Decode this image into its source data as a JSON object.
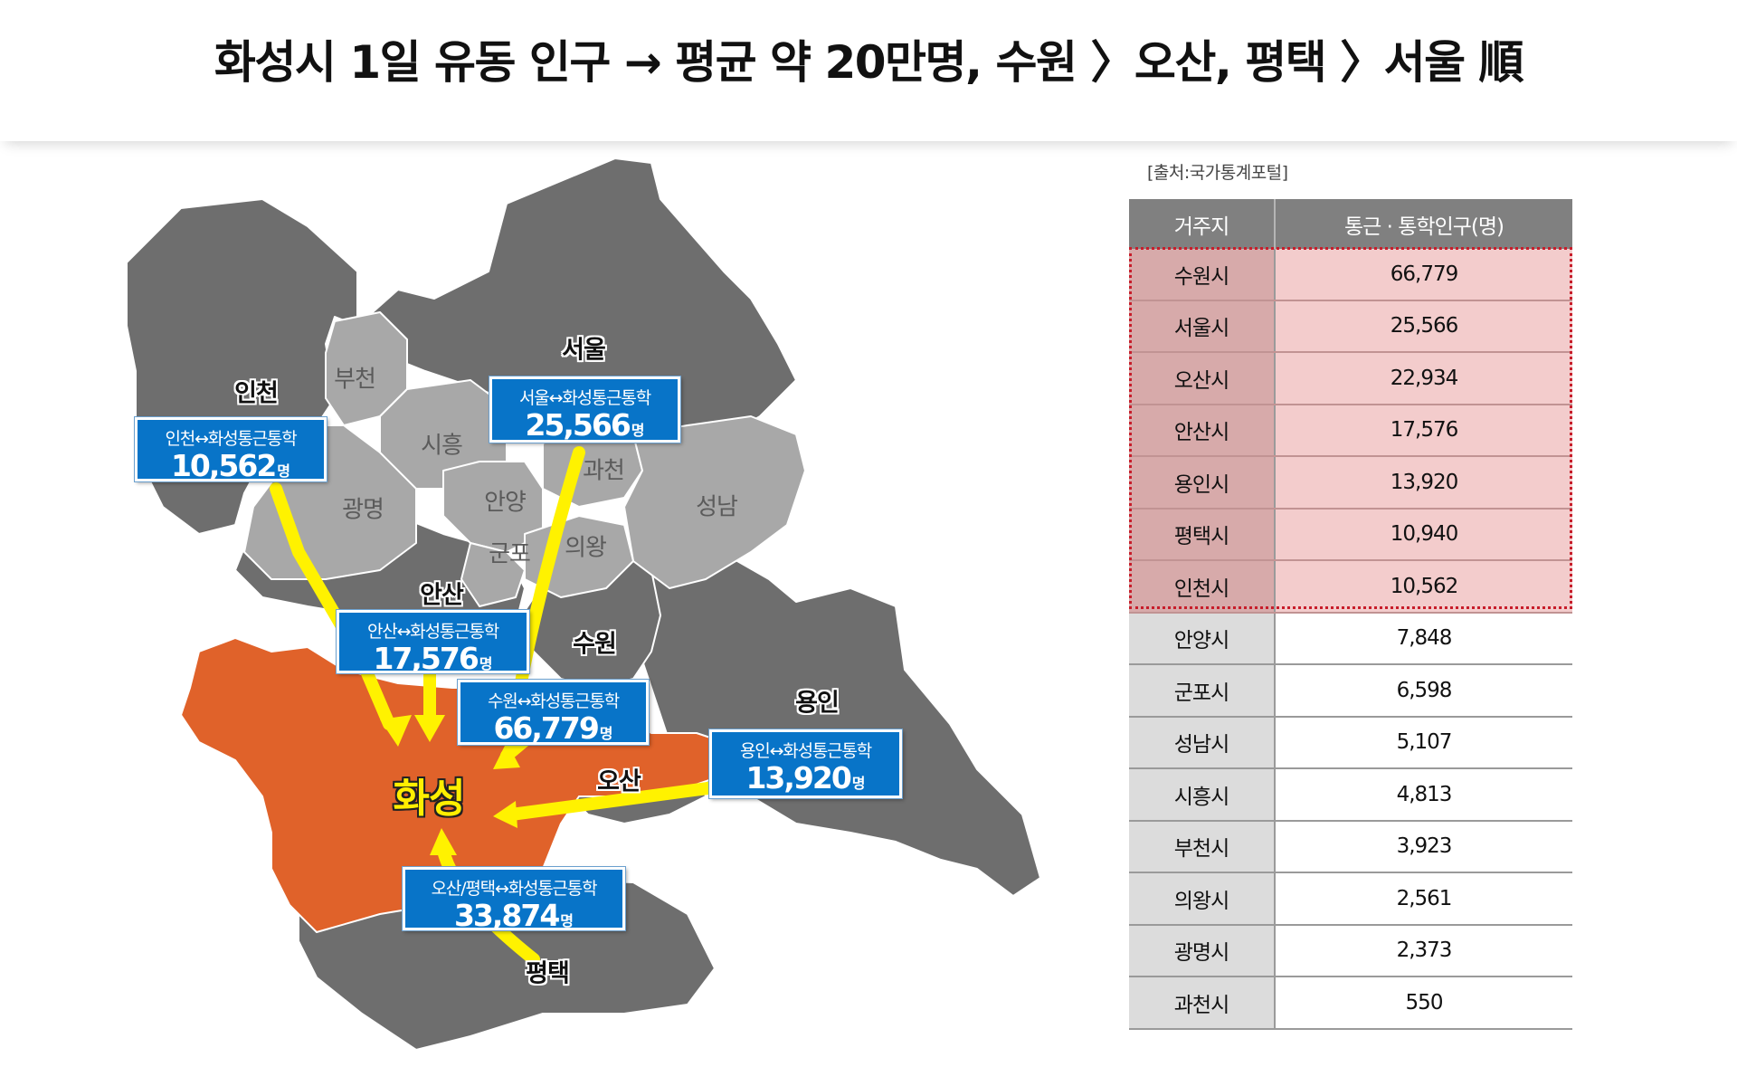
{
  "title": "화성시 1일  유동 인구 → 평균 약 20만명, 수원 〉오산, 평택 〉서울 順",
  "colors": {
    "home_region": "#e0622a",
    "dark_region": "#6e6e6e",
    "light_region": "#a8a8a8",
    "arrow": "#fff200",
    "callout": "#0874c8",
    "highlight_row": "#f3cccc",
    "highlight_border": "#c71d2a"
  },
  "map": {
    "labels": {
      "incheon": "인천",
      "seoul": "서울",
      "bucheon": "부천",
      "siheung": "시흥",
      "gwangmyeong": "광명",
      "anyang": "안양",
      "gwacheon": "과천",
      "seongnam": "성남",
      "gunpo": "군포",
      "uiwang": "의왕",
      "ansan": "안산",
      "suwon": "수원",
      "yongin": "용인",
      "osan": "오산",
      "pyeongtaek": "평택",
      "hwaseong": "화성"
    },
    "unit": "명",
    "callouts": {
      "incheon": {
        "route": "인천↔화성통근통학",
        "value": "10,562"
      },
      "seoul": {
        "route": "서울↔화성통근통학",
        "value": "25,566"
      },
      "ansan": {
        "route": "안산↔화성통근통학",
        "value": "17,576"
      },
      "suwon": {
        "route": "수원↔화성통근통학",
        "value": "66,779"
      },
      "yongin": {
        "route": "용인↔화성통근통학",
        "value": "13,920"
      },
      "osan_pyeongtaek": {
        "route": "오산/평택↔화성통근통학",
        "value": "33,874"
      }
    }
  },
  "table": {
    "source": "[출처:국가통계포털]",
    "headers": [
      "거주지",
      "통근 · 통학인구(명)"
    ],
    "rows": [
      {
        "residence": "수원시",
        "population": "66,779",
        "highlight": true
      },
      {
        "residence": "서울시",
        "population": "25,566",
        "highlight": true
      },
      {
        "residence": "오산시",
        "population": "22,934",
        "highlight": true
      },
      {
        "residence": "안산시",
        "population": "17,576",
        "highlight": true
      },
      {
        "residence": "용인시",
        "population": "13,920",
        "highlight": true
      },
      {
        "residence": "평택시",
        "population": "10,940",
        "highlight": true
      },
      {
        "residence": "인천시",
        "population": "10,562",
        "highlight": true
      },
      {
        "residence": "안양시",
        "population": "7,848",
        "highlight": false
      },
      {
        "residence": "군포시",
        "population": "6,598",
        "highlight": false
      },
      {
        "residence": "성남시",
        "population": "5,107",
        "highlight": false
      },
      {
        "residence": "시흥시",
        "population": "4,813",
        "highlight": false
      },
      {
        "residence": "부천시",
        "population": "3,923",
        "highlight": false
      },
      {
        "residence": "의왕시",
        "population": "2,561",
        "highlight": false
      },
      {
        "residence": "광명시",
        "population": "2,373",
        "highlight": false
      },
      {
        "residence": "과천시",
        "population": "550",
        "highlight": false
      }
    ]
  }
}
